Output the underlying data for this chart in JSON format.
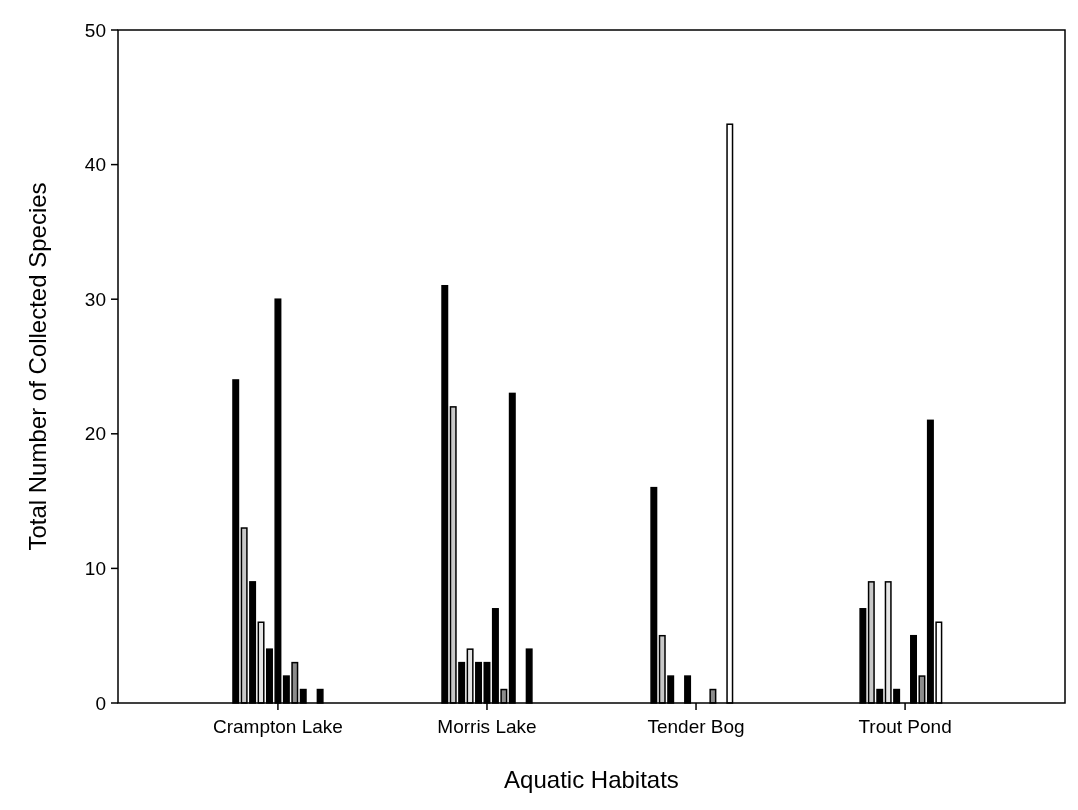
{
  "chart_data": {
    "type": "bar",
    "xlabel": "Aquatic Habitats",
    "ylabel": "Total Number of Collected Species",
    "categories": [
      "Crampton Lake",
      "Morris Lake",
      "Tender Bog",
      "Trout Pond"
    ],
    "ylim": [
      0,
      50
    ],
    "yticks": [
      0,
      10,
      20,
      30,
      40,
      50
    ],
    "grid": false,
    "series": [
      {
        "color": "#000000",
        "values": [
          24,
          31,
          16,
          7
        ]
      },
      {
        "color": "#c8c8c8",
        "values": [
          13,
          22,
          5,
          9
        ]
      },
      {
        "color": "#000000",
        "values": [
          9,
          3,
          2,
          1
        ]
      },
      {
        "color": "#e6e6e6",
        "values": [
          6,
          4,
          0,
          9
        ]
      },
      {
        "color": "#000000",
        "values": [
          4,
          3,
          2,
          1
        ]
      },
      {
        "color": "#000000",
        "values": [
          30,
          3,
          0,
          0
        ]
      },
      {
        "color": "#000000",
        "values": [
          2,
          7,
          0,
          5
        ]
      },
      {
        "color": "#8c8c8c",
        "values": [
          3,
          1,
          1,
          2
        ]
      },
      {
        "color": "#000000",
        "values": [
          1,
          23,
          0,
          21
        ]
      },
      {
        "color": "#ffffff",
        "values": [
          0,
          0,
          43,
          6
        ]
      },
      {
        "color": "#000000",
        "values": [
          1,
          4,
          0,
          0
        ]
      }
    ]
  }
}
